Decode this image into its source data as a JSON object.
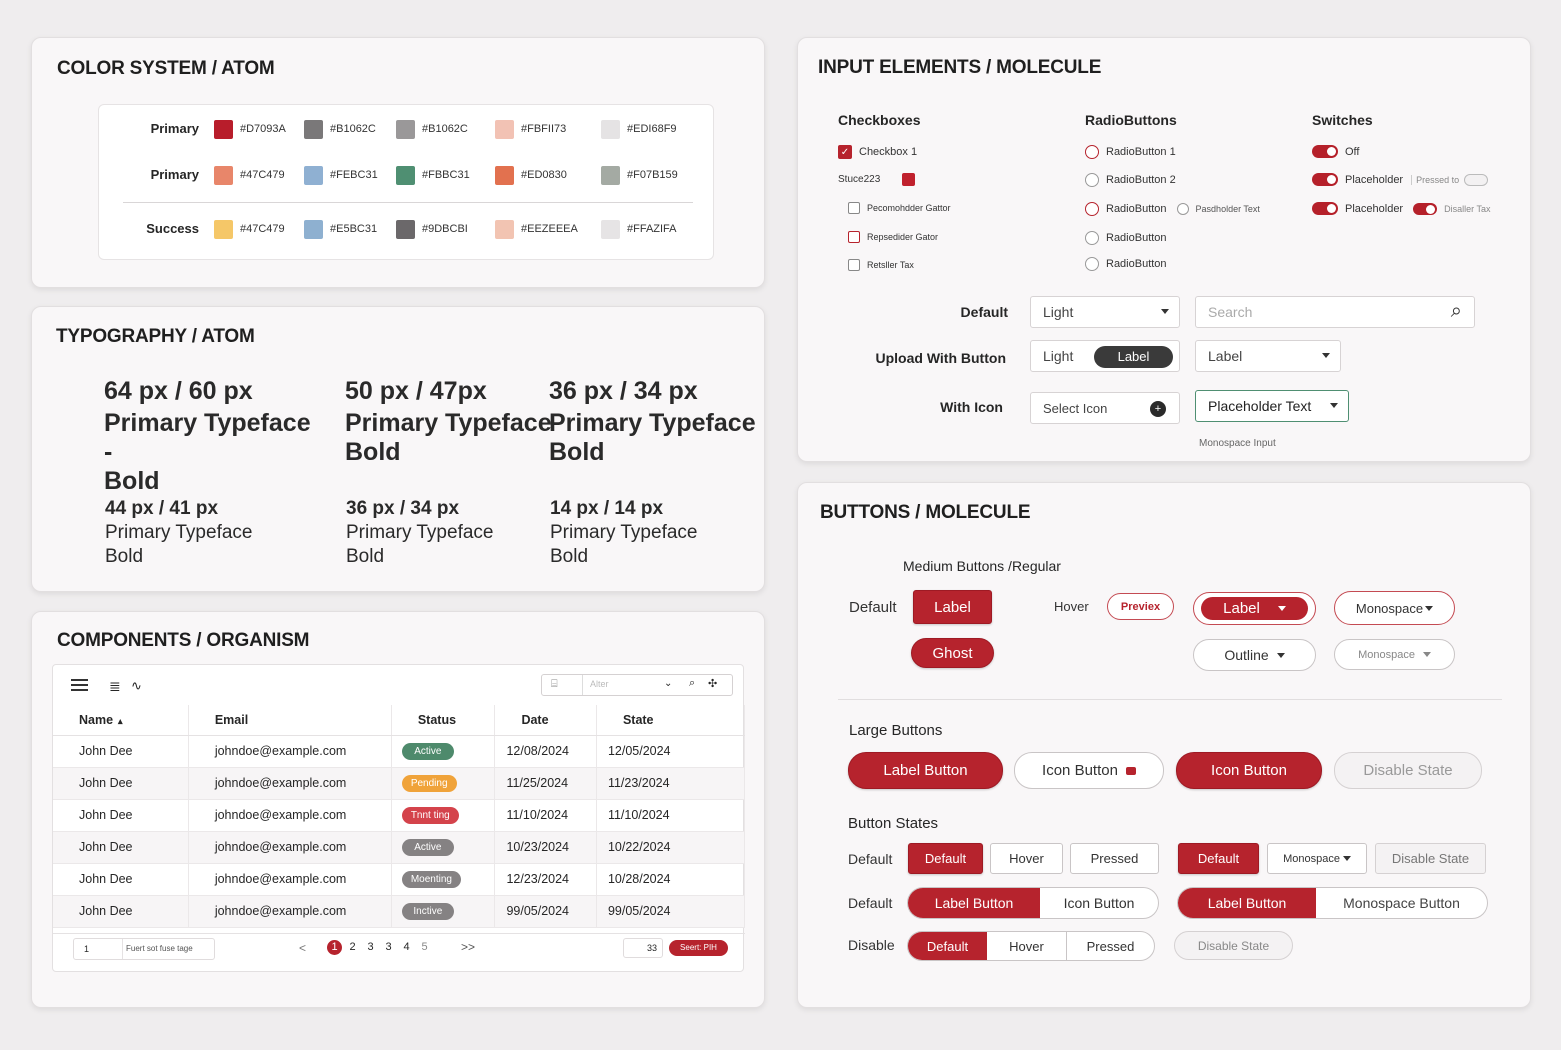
{
  "colors": {
    "title": "COLOR SYSTEM / ATOM",
    "rows": [
      {
        "label": "Primary",
        "chips": [
          {
            "hex": "#D7093A",
            "color": "#b81d2b"
          },
          {
            "hex": "#B1062C",
            "color": "#7a7879"
          },
          {
            "hex": "#B1062C",
            "color": "#9a9899"
          },
          {
            "hex": "#FBFII73",
            "color": "#f2c2b4"
          },
          {
            "hex": "#EDI68F9",
            "color": "#e5e3e4"
          }
        ]
      },
      {
        "label": "Primary",
        "chips": [
          {
            "hex": "#47C479",
            "color": "#e8866a"
          },
          {
            "hex": "#FEBC31",
            "color": "#8fb0d2"
          },
          {
            "hex": "#FBBC31",
            "color": "#4f8f72"
          },
          {
            "hex": "#ED0830",
            "color": "#e2714f"
          },
          {
            "hex": "#F07B159",
            "color": "#a4aaa3"
          }
        ]
      },
      {
        "label": "Success",
        "chips": [
          {
            "hex": "#47C479",
            "color": "#f5c768"
          },
          {
            "hex": "#E5BC31",
            "color": "#8eb0d0"
          },
          {
            "hex": "#9DBCBI",
            "color": "#6b686a"
          },
          {
            "hex": "#EEZEEEA",
            "color": "#f2c4b2"
          },
          {
            "hex": "#FFAZIFA",
            "color": "#e6e4e5"
          }
        ]
      }
    ]
  },
  "typography": {
    "title": "TYPOGRAPHY / ATOM",
    "big": [
      {
        "size": "64 px / 60 px",
        "name": "Primary Typeface -",
        "weight": "Bold"
      },
      {
        "size": "50 px / 47px",
        "name": "Primary Typeface",
        "weight": "Bold"
      },
      {
        "size": "36 px / 34 px",
        "name": "Primary Typeface",
        "weight": "Bold"
      }
    ],
    "small": [
      {
        "size": "44 px / 41 px",
        "name": "Primary Typeface",
        "weight": "Bold"
      },
      {
        "size": "36 px / 34 px",
        "name": "Primary Typeface",
        "weight": "Bold"
      },
      {
        "size": "14 px / 14 px",
        "name": "Primary Typeface",
        "weight": "Bold"
      }
    ]
  },
  "components": {
    "title": "COMPONENTS / ORGANISM",
    "toolbar": {
      "filter_placeholder": "Alter",
      "icons": [
        "menu-icon",
        "list-icon",
        "chart-icon",
        "filter-icon",
        "search-icon",
        "more-icon"
      ]
    },
    "columns": [
      "Name",
      "Email",
      "Status",
      "Date",
      "State"
    ],
    "rows": [
      {
        "name": "John Dee",
        "email": "johndoe@example.com",
        "status": "Active",
        "status_color": "#4e8a6c",
        "date": "12/08/2024",
        "state": "12/05/2024"
      },
      {
        "name": "John Dee",
        "email": "johndoe@example.com",
        "status": "Pending",
        "status_color": "#f0a33a",
        "date": "11/25/2024",
        "state": "11/23/2024"
      },
      {
        "name": "John Dee",
        "email": "johndoe@example.com",
        "status": "Tnnt ting",
        "status_color": "#d4434b",
        "date": "11/10/2024",
        "state": "11/10/2024"
      },
      {
        "name": "John Dee",
        "email": "johndoe@example.com",
        "status": "Active",
        "status_color": "#858283",
        "date": "10/23/2024",
        "state": "10/22/2024"
      },
      {
        "name": "John Dee",
        "email": "johndoe@example.com",
        "status": "Moenting",
        "status_color": "#858283",
        "date": "12/23/2024",
        "state": "10/28/2024"
      },
      {
        "name": "John Dee",
        "email": "johndoe@example.com",
        "status": "Inctive",
        "status_color": "#858283",
        "date": "99/05/2024",
        "state": "99/05/2024"
      }
    ],
    "footer": {
      "rows_value": "1",
      "rows_text": "Fuert  sot fuse tage",
      "pages": [
        "1",
        "2",
        "3",
        "3",
        "4",
        "5"
      ],
      "prev": "<",
      "next": ">>",
      "count": "33",
      "action": "Seert: PIH"
    }
  },
  "inputs": {
    "title": "INPUT ELEMENTS / MOLECULE",
    "checkboxes": {
      "title": "Checkboxes",
      "items": [
        {
          "label": "Checkbox 1",
          "checked": true
        },
        {
          "label": "Stuce223",
          "swatch": true
        },
        {
          "label": "Pecomohdder Gattor"
        },
        {
          "label": "Repsedider Gator"
        },
        {
          "label": "Retsller Tax"
        }
      ]
    },
    "radios": {
      "title": "RadioButtons",
      "items": [
        "RadioButton 1",
        "RadioButton 2",
        "RadioButton",
        "RadioButton",
        "RadioButton"
      ],
      "extra": "Pasdholder Text"
    },
    "switches": {
      "title": "Switches",
      "items": [
        {
          "label": "Off"
        },
        {
          "label": "Placeholder",
          "sub": "Pressed to"
        },
        {
          "label": "Placeholder",
          "sub": "Disaller Tax"
        }
      ]
    },
    "rows": [
      {
        "label": "Default",
        "field1": "Light",
        "field2_placeholder": "Search"
      },
      {
        "label": "Upload With Button",
        "field1": "Light",
        "button": "Label",
        "field2": "Label"
      },
      {
        "label": "With Icon",
        "field1": "Select Icon",
        "field2": "Placeholder Text",
        "hint": "Monospace Input"
      }
    ]
  },
  "buttons": {
    "title": "BUTTONS / MOLECULE",
    "medium_title": "Medium Buttons /Regular",
    "default_label": "Default",
    "label": "Label",
    "ghost": "Ghost",
    "hover_label": "Hover",
    "preview": "Previex",
    "label_dd": "Label",
    "monospace": "Monospace",
    "outline": "Outline",
    "monospace2": "Monospace",
    "large_title": "Large Buttons",
    "large": [
      "Label Button",
      "Icon Button",
      "Icon Button",
      "Disable State"
    ],
    "states_title": "Button States",
    "row1": {
      "label": "Default",
      "seg": [
        "Default",
        "Hover",
        "Pressed"
      ],
      "b1": "Default",
      "b2": "Monospace",
      "b3": "Disable State"
    },
    "row2": {
      "label": "Default",
      "seg": [
        "Label Button",
        "Icon Button"
      ],
      "seg2": [
        "Label Button",
        "Monospace Button"
      ]
    },
    "row3": {
      "label": "Disable",
      "seg": [
        "Default",
        "Hover",
        "Pressed"
      ],
      "b1": "Disable State"
    }
  }
}
